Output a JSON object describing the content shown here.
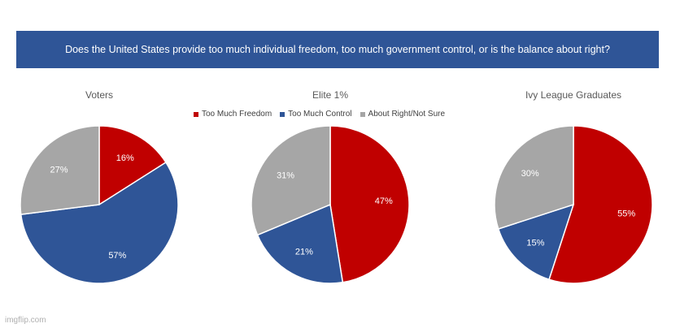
{
  "header": {
    "question": "Does the United States provide too much individual freedom, too much government control, or is the balance about right?"
  },
  "legend": {
    "items": [
      {
        "label": "Too Much Freedom",
        "color": "#c00000"
      },
      {
        "label": "Too Much Control",
        "color": "#2f5597"
      },
      {
        "label": "About Right/Not Sure",
        "color": "#a6a6a6"
      }
    ]
  },
  "chart_data": [
    {
      "type": "pie",
      "title": "Voters",
      "categories": [
        "Too Much Freedom",
        "Too Much Control",
        "About Right/Not Sure"
      ],
      "values": [
        16,
        57,
        27
      ],
      "labels": [
        "16%",
        "57%",
        "27%"
      ]
    },
    {
      "type": "pie",
      "title": "Elite 1%",
      "categories": [
        "Too Much Freedom",
        "Too Much Control",
        "About Right/Not Sure"
      ],
      "values": [
        47,
        21,
        31
      ],
      "labels": [
        "47%",
        "21%",
        "31%"
      ]
    },
    {
      "type": "pie",
      "title": "Ivy League Graduates",
      "categories": [
        "Too Much Freedom",
        "Too Much Control",
        "About Right/Not Sure"
      ],
      "values": [
        55,
        15,
        30
      ],
      "labels": [
        "55%",
        "15%",
        "30%"
      ]
    }
  ],
  "colors": {
    "freedom": "#c00000",
    "control": "#2f5597",
    "neutral": "#a6a6a6",
    "banner": "#2f5597"
  },
  "watermark": "imgflip.com"
}
